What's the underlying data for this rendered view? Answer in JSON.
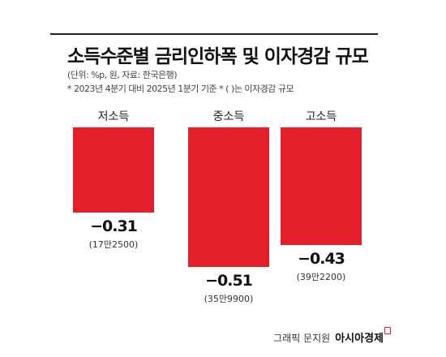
{
  "title": "소득수준별 금리인하폭 및 이자경감 규모",
  "notes": {
    "unit": "(단위: %p, 원, 자료: 한국은행)",
    "basis": "* 2023년 4분기 대비 2025년 1분기 기준  * ( )는 이자경감 규모"
  },
  "chart_data": {
    "type": "bar",
    "categories": [
      "저소득",
      "중소득",
      "고소득"
    ],
    "values": [
      -0.31,
      -0.51,
      -0.43
    ],
    "value_labels": [
      "−0.31",
      "−0.51",
      "−0.43"
    ],
    "annotations": [
      "(17만2500)",
      "(35만9900)",
      "(39만2200)"
    ],
    "ylim": [
      -0.51,
      0
    ],
    "xlabel": "",
    "ylabel": "",
    "bar_color": "#e3202a"
  },
  "credit": {
    "byline": "그래픽 문지원",
    "brand": "아시아경제"
  }
}
